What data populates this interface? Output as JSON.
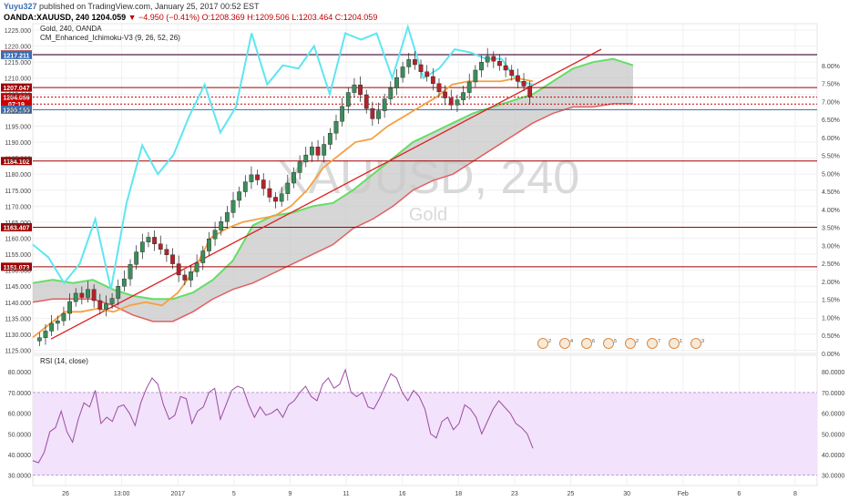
{
  "header": {
    "user": "Yuyu327",
    "published": "published on TradingView.com, January 25, 2017 00:52 EST",
    "symbol": "OANDA:XAUUSD, 240",
    "last": "1204.059",
    "change": "▼ −4.950 (−0.41%)",
    "ohlc_o": "O:1208.369",
    "ohlc_h": "H:1209.506",
    "ohlc_l": "L:1203.464",
    "ohlc_c": "C:1204.059"
  },
  "legend": {
    "main_title": "Gold, 240, OANDA",
    "indicator": "CM_Enhanced_Ichimoku-V3 (9, 26, 52, 26)",
    "rsi": "RSI (14, close)"
  },
  "watermark": {
    "symbol": "XAUUSD, 240",
    "name": "Gold"
  },
  "colors": {
    "up": "#3c8c5a",
    "down": "#b3222a",
    "tenkan": "#5ee6f0",
    "kijun": "#f5a041",
    "cloud_bull": "#66dd66",
    "cloud_bear": "#e06060",
    "trendline": "#e02020",
    "resistance": "#a00000",
    "rsi_line": "#9a4ca0",
    "rsi_band": "#f2e2fb"
  },
  "chart_data": {
    "type": "candlestick",
    "title": "Gold, 240, OANDA",
    "ylim": [
      1124,
      1227
    ],
    "y_ticks": [
      "1125.000",
      "1130.000",
      "1135.000",
      "1140.000",
      "1145.000",
      "1150.000",
      "1155.000",
      "1160.000",
      "1165.000",
      "1170.000",
      "1175.000",
      "1180.000",
      "1185.000",
      "1190.000",
      "1195.000",
      "1200.000",
      "1205.000",
      "1210.000",
      "1215.000",
      "1220.000",
      "1225.000"
    ],
    "pct_ticks": [
      "0.00%",
      "0.50%",
      "1.00%",
      "1.50%",
      "2.00%",
      "2.50%",
      "3.00%",
      "3.50%",
      "4.00%",
      "4.50%",
      "5.00%",
      "5.50%",
      "6.00%",
      "6.50%",
      "7.00%",
      "7.50%",
      "8.00%"
    ],
    "x_ticks": [
      "26",
      "13:00",
      "2017",
      "5",
      "9",
      "11",
      "16",
      "18",
      "23",
      "25",
      "30",
      "Feb",
      "6",
      "8"
    ],
    "ohlc_approx": [
      1128.9,
      1131.0,
      1133.4,
      1134.2,
      1136.5,
      1140.2,
      1142.8,
      1141.5,
      1144.0,
      1140.5,
      1137.8,
      1139.5,
      1141.2,
      1145.0,
      1147.3,
      1151.8,
      1155.7,
      1158.8,
      1160.3,
      1158.2,
      1156.5,
      1154.8,
      1152.0,
      1148.5,
      1146.9,
      1149.5,
      1152.3,
      1156.0,
      1159.8,
      1162.5,
      1165.2,
      1168.0,
      1171.8,
      1174.5,
      1177.6,
      1179.8,
      1178.2,
      1175.5,
      1172.8,
      1171.5,
      1173.9,
      1177.2,
      1180.5,
      1183.8,
      1186.0,
      1188.5,
      1185.9,
      1189.3,
      1192.8,
      1196.5,
      1201.2,
      1205.5,
      1207.9,
      1204.8,
      1200.5,
      1197.3,
      1199.8,
      1203.5,
      1206.9,
      1210.2,
      1213.5,
      1215.8,
      1214.2,
      1212.0,
      1210.5,
      1208.3,
      1205.7,
      1203.8,
      1201.6,
      1203.2,
      1205.5,
      1208.8,
      1212.5,
      1215.0,
      1216.8,
      1215.3,
      1213.9,
      1212.5,
      1210.8,
      1209.0,
      1207.5,
      1204.1
    ],
    "price_levels": [
      {
        "label": "1217.368",
        "value": 1217.368,
        "color": "#a00000"
      },
      {
        "label": "1217.211",
        "value": 1217.211,
        "color": "#3a6fb4"
      },
      {
        "label": "1207.047",
        "value": 1207.047,
        "color": "#a00000"
      },
      {
        "label": "1204.059",
        "value": 1204.059,
        "color": "#cc0000"
      },
      {
        "label": "07:19",
        "value": 1201.9,
        "color": "#cc0000"
      },
      {
        "label": "1200.160",
        "value": 1200.16,
        "color": "#3a6fb4"
      },
      {
        "label": "1184.102",
        "value": 1184.102,
        "color": "#a00000"
      },
      {
        "label": "1163.407",
        "value": 1163.407,
        "color": "#a00000"
      },
      {
        "label": "1151.073",
        "value": 1151.073,
        "color": "#a00000"
      }
    ],
    "trendline": {
      "from": 1128.5,
      "to": 1219.0
    },
    "tenkan_sen": [
      1158,
      1154,
      1146,
      1152,
      1166,
      1144,
      1171,
      1189,
      1180,
      1186,
      1198,
      1208,
      1193,
      1201,
      1224,
      1208,
      1214,
      1213,
      1220,
      1205,
      1224,
      1222,
      1224,
      1210,
      1226,
      1210,
      1213,
      1219,
      1218,
      1216,
      1216,
      1209,
      1208
    ],
    "kijun_sen": [
      1129,
      1133,
      1137,
      1137,
      1138,
      1137,
      1139,
      1140,
      1139,
      1143,
      1150,
      1160,
      1163,
      1165,
      1166,
      1167,
      1170,
      1175,
      1182,
      1186,
      1190,
      1191,
      1195,
      1198,
      1201,
      1204,
      1208,
      1209,
      1209,
      1209,
      1210,
      1209
    ],
    "cloud_span_a": [
      1146,
      1147,
      1146,
      1147,
      1144,
      1142,
      1141,
      1141,
      1143,
      1147,
      1153,
      1164,
      1167,
      1168,
      1170,
      1171,
      1175,
      1180,
      1185,
      1190,
      1193,
      1196,
      1199,
      1201,
      1203,
      1205,
      1209,
      1213,
      1215,
      1216,
      1214
    ],
    "cloud_span_b": [
      1140,
      1141,
      1141,
      1141,
      1139,
      1136,
      1134,
      1134,
      1137,
      1141,
      1144,
      1146,
      1149,
      1152,
      1155,
      1158,
      1163,
      1166,
      1170,
      1175,
      1178,
      1180,
      1184,
      1188,
      1192,
      1196,
      1199,
      1201,
      1201,
      1202,
      1202
    ],
    "event_icons": [
      "2",
      "4",
      "6",
      "5",
      "2",
      "7",
      "1",
      "3"
    ],
    "rsi": {
      "title": "RSI (14, close)",
      "ylim": [
        25,
        88
      ],
      "ticks": [
        "30.0000",
        "40.0000",
        "50.0000",
        "60.0000",
        "70.0000",
        "80.0000"
      ],
      "band": [
        30,
        70
      ],
      "values": [
        37,
        36,
        41,
        51,
        53,
        61,
        51,
        46,
        57,
        65,
        63,
        71,
        55,
        58,
        56,
        63,
        64,
        60,
        54,
        65,
        72,
        77,
        74,
        64,
        57,
        59,
        68,
        67,
        55,
        61,
        63,
        70,
        72,
        57,
        64,
        71,
        73,
        72,
        64,
        58,
        63,
        59,
        60,
        62,
        58,
        64,
        66,
        70,
        73,
        68,
        66,
        74,
        77,
        72,
        74,
        81,
        70,
        68,
        70,
        63,
        62,
        67,
        73,
        79,
        77,
        70,
        66,
        71,
        68,
        62,
        50,
        48,
        56,
        58,
        52,
        55,
        64,
        62,
        58,
        50,
        56,
        62,
        66,
        63,
        60,
        55,
        53,
        50,
        43
      ]
    }
  }
}
